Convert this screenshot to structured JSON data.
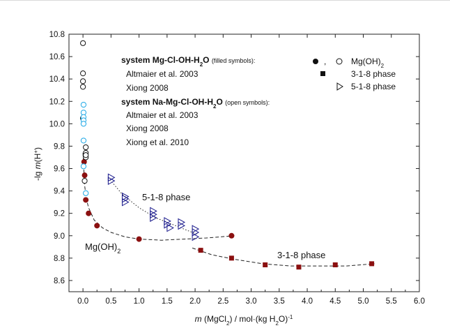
{
  "chart_data": {
    "type": "scatter",
    "title": "",
    "xlabel": "m (MgCl2) / mol·(kg H2O)^-1",
    "ylabel": "-lg m(H+)",
    "xlim": [
      -0.25,
      6.0
    ],
    "ylim": [
      8.5,
      10.8
    ],
    "xticks": [
      "0.0",
      "0.5",
      "1.0",
      "1.5",
      "2.0",
      "2.5",
      "3.0",
      "3.5",
      "4.0",
      "4.5",
      "5.0",
      "5.5",
      "6.0"
    ],
    "yticks": [
      "8.6",
      "8.8",
      "9.0",
      "9.2",
      "9.4",
      "9.6",
      "9.8",
      "10.0",
      "10.2",
      "10.4",
      "10.6",
      "10.8"
    ],
    "grid": false,
    "legend_placement": "top",
    "legend": {
      "system1_title": "system Mg-Cl-OH-H2O",
      "system1_note": "(filled symbols):",
      "system1_entries": [
        {
          "name": "Altmaier et al. 2003",
          "color": "#8b1010"
        },
        {
          "name": "Xiong 2008",
          "color": "#1ea8e6"
        }
      ],
      "system2_title": "system Na-Mg-Cl-OH-H2O",
      "system2_note": "(open symbols):",
      "system2_entries": [
        {
          "name": "Altmaier et al. 2003",
          "color": "#111111"
        },
        {
          "name": "Xiong 2008",
          "color": "#1ea8e6"
        },
        {
          "name": "Xiong et al. 2010",
          "color": "#1a1a8c"
        }
      ],
      "symbol_entries": [
        {
          "name": "Mg(OH)2",
          "symbol": "circle"
        },
        {
          "name": "3-1-8 phase",
          "symbol": "square"
        },
        {
          "name": "5-1-8 phase",
          "symbol": "triangle-right"
        }
      ]
    },
    "annotations": [
      "5-1-8 phase",
      "3-1-8 phase",
      "Mg(OH)2"
    ],
    "series": [
      {
        "source": "Altmaier et al. 2003",
        "system": "Mg-Cl-OH-H2O",
        "phase": "Mg(OH)2",
        "marker": "filled-circle",
        "color": "#8b1010",
        "x": [
          0.02,
          0.03,
          0.05,
          0.1,
          0.25,
          1.0,
          2.65
        ],
        "y": [
          9.66,
          9.54,
          9.32,
          9.2,
          9.09,
          8.97,
          9.0
        ]
      },
      {
        "source": "Altmaier et al. 2003",
        "system": "Mg-Cl-OH-H2O",
        "phase": "3-1-8 phase",
        "marker": "filled-square",
        "color": "#8b1010",
        "x": [
          2.1,
          2.65,
          3.25,
          3.85,
          4.5,
          5.15
        ],
        "y": [
          8.87,
          8.8,
          8.74,
          8.72,
          8.74,
          8.75
        ]
      },
      {
        "source": "Altmaier et al. 2003",
        "system": "Na-Mg-Cl-OH-H2O",
        "phase": "Mg(OH)2",
        "marker": "open-circle",
        "color": "#111111",
        "x": [
          0.0,
          0.0,
          0.0,
          0.0,
          0.0,
          0.05,
          0.05,
          0.05,
          0.05,
          0.03
        ],
        "y": [
          10.72,
          10.45,
          10.38,
          10.33,
          10.05,
          9.79,
          9.74,
          9.7,
          9.72,
          9.49
        ]
      },
      {
        "source": "Xiong 2008",
        "system": "Na-Mg-Cl-OH-H2O",
        "phase": "Mg(OH)2",
        "marker": "open-circle",
        "color": "#1ea8e6",
        "x": [
          0.01,
          0.01,
          0.01,
          0.01,
          0.01,
          0.01,
          0.01,
          0.05
        ],
        "y": [
          10.17,
          10.1,
          10.06,
          10.03,
          10.0,
          9.85,
          9.62,
          9.38
        ]
      },
      {
        "source": "Xiong et al. 2010",
        "system": "Na-Mg-Cl-OH-H2O",
        "phase": "5-1-8 phase",
        "marker": "open-triangle-right",
        "color": "#1a1a8c",
        "x": [
          0.5,
          0.5,
          0.75,
          0.75,
          0.75,
          1.25,
          1.25,
          1.25,
          1.5,
          1.5,
          1.55,
          1.75,
          1.75,
          2.0,
          2.0,
          2.0
        ],
        "y": [
          9.52,
          9.49,
          9.35,
          9.33,
          9.3,
          9.22,
          9.19,
          9.16,
          9.13,
          9.1,
          9.07,
          9.12,
          9.09,
          9.06,
          9.03,
          8.99
        ]
      }
    ],
    "fit_curves": [
      {
        "label": "Mg(OH)2",
        "style": "dashed",
        "x": [
          0.0,
          0.03,
          0.06,
          0.1,
          0.2,
          0.35,
          0.5,
          0.75,
          1.0,
          1.4,
          1.8,
          2.2,
          2.7
        ],
        "y": [
          9.74,
          9.45,
          9.33,
          9.25,
          9.14,
          9.07,
          9.03,
          8.99,
          8.97,
          8.96,
          8.97,
          8.98,
          9.0
        ]
      },
      {
        "label": "3-1-8 phase",
        "style": "dashed",
        "x": [
          1.95,
          2.3,
          2.7,
          3.2,
          3.7,
          4.2,
          4.7,
          5.2
        ],
        "y": [
          8.89,
          8.83,
          8.79,
          8.75,
          8.73,
          8.73,
          8.73,
          8.75
        ]
      },
      {
        "label": "5-1-8 phase",
        "style": "dotted",
        "x": [
          0.45,
          0.7,
          1.0,
          1.3,
          1.6,
          1.85,
          2.05
        ],
        "y": [
          9.52,
          9.37,
          9.25,
          9.16,
          9.1,
          9.05,
          9.01
        ]
      }
    ]
  }
}
